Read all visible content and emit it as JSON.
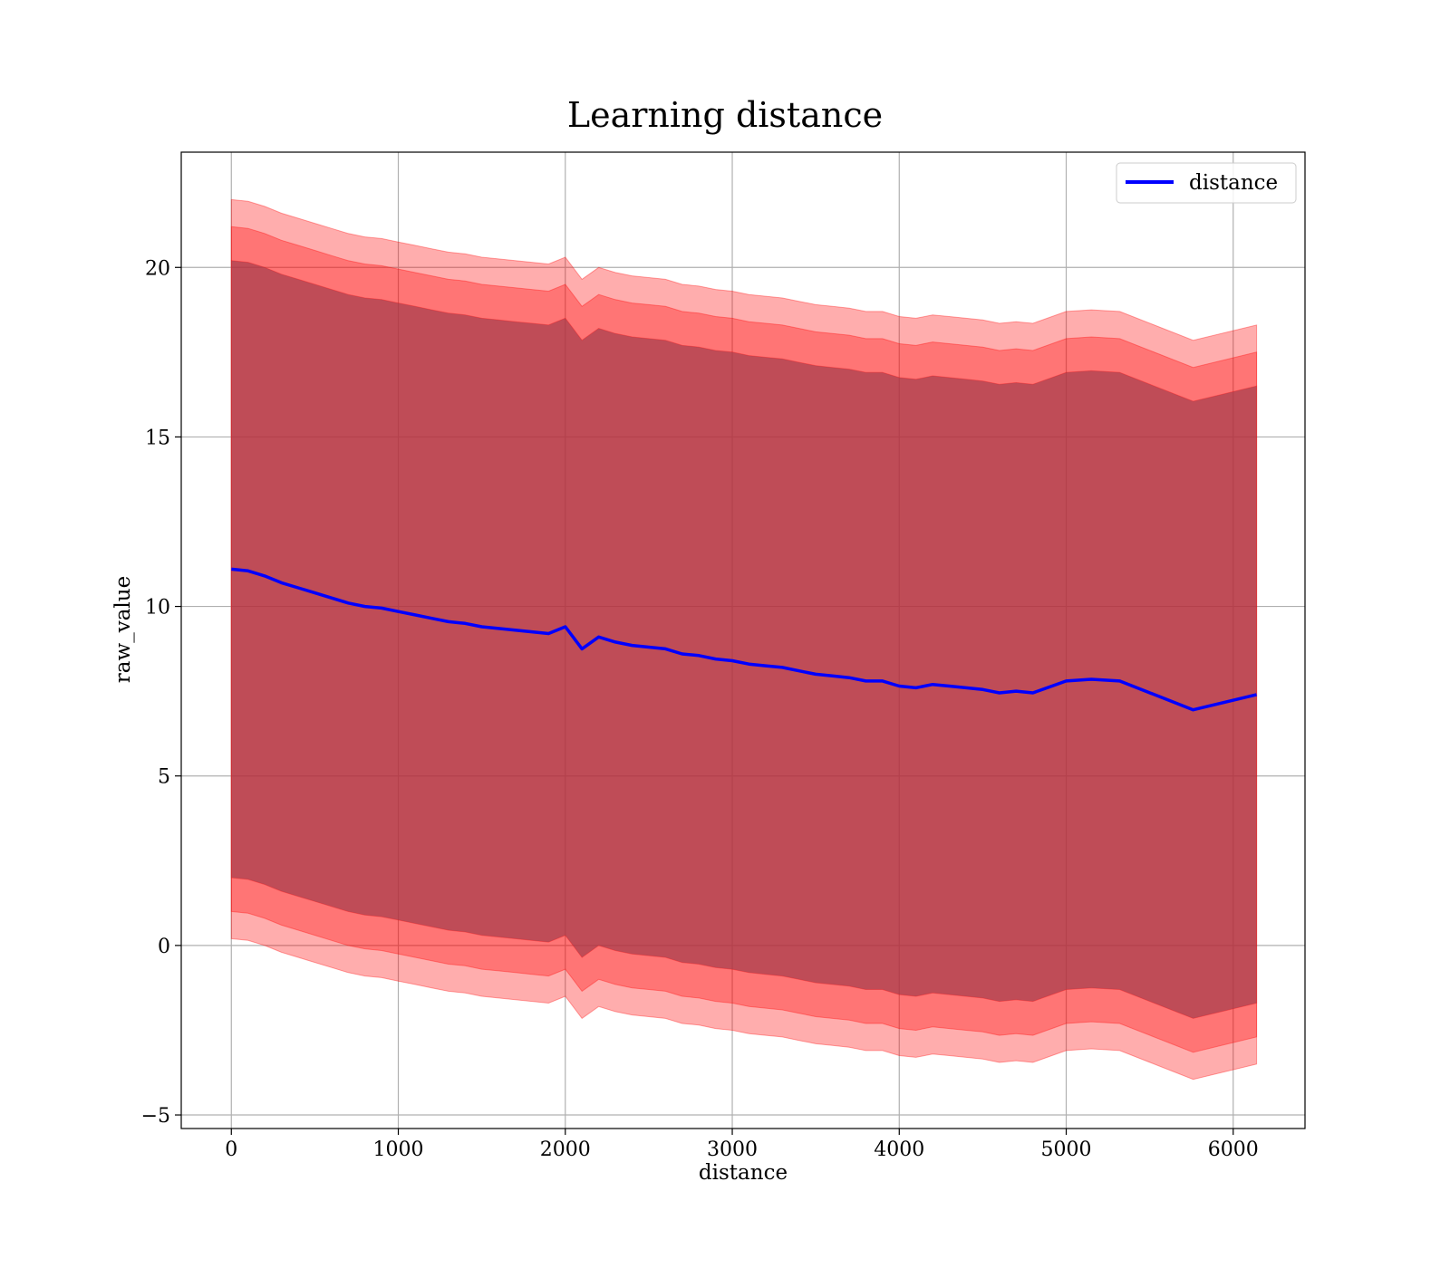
{
  "chart_data": {
    "type": "line",
    "title": "Learning distance",
    "xlabel": "distance",
    "ylabel": "raw_value",
    "xlim": [
      -300,
      6430
    ],
    "ylim": [
      -5.4,
      23.4
    ],
    "xticks": [
      0,
      1000,
      2000,
      3000,
      4000,
      5000,
      6000
    ],
    "yticks": [
      -5,
      0,
      5,
      10,
      15,
      20
    ],
    "xtick_labels": [
      "0",
      "1000",
      "2000",
      "3000",
      "4000",
      "5000",
      "6000"
    ],
    "ytick_labels": [
      "−5",
      "0",
      "5",
      "10",
      "15",
      "20"
    ],
    "grid": true,
    "legend": {
      "placement": "top-right",
      "entries": [
        "distance"
      ]
    },
    "colors": {
      "line": "#0000ff",
      "band": "#ff0000",
      "band_overlap": "#8b4a5e"
    },
    "series": [
      {
        "name": "distance",
        "x": [
          0,
          100,
          200,
          300,
          400,
          500,
          600,
          700,
          800,
          900,
          1000,
          1100,
          1200,
          1300,
          1400,
          1500,
          1600,
          1700,
          1800,
          1900,
          2000,
          2100,
          2200,
          2300,
          2400,
          2500,
          2600,
          2700,
          2800,
          2900,
          3000,
          3100,
          3200,
          3300,
          3400,
          3500,
          3600,
          3700,
          3800,
          3900,
          4000,
          4100,
          4200,
          4300,
          4400,
          4500,
          4600,
          4700,
          4800,
          5000,
          5150,
          5320,
          5760,
          6140
        ],
        "y": [
          11.1,
          11.05,
          10.9,
          10.7,
          10.55,
          10.4,
          10.25,
          10.1,
          10.0,
          9.95,
          9.85,
          9.75,
          9.65,
          9.55,
          9.5,
          9.4,
          9.35,
          9.3,
          9.25,
          9.2,
          9.4,
          8.75,
          9.1,
          8.95,
          8.85,
          8.8,
          8.75,
          8.6,
          8.55,
          8.45,
          8.4,
          8.3,
          8.25,
          8.2,
          8.1,
          8.0,
          7.95,
          7.9,
          7.8,
          7.8,
          7.65,
          7.6,
          7.7,
          7.65,
          7.6,
          7.55,
          7.45,
          7.5,
          7.45,
          7.8,
          7.85,
          7.8,
          6.95,
          7.4
        ],
        "band_1sd": {
          "lower": "y - 9.1",
          "upper": "y + 9.1"
        },
        "band_2sd": {
          "lower": "y - 10.1",
          "upper": "y + 10.1"
        },
        "band_3sd": {
          "lower": "y - 10.9",
          "upper": "y + 10.9"
        }
      }
    ]
  }
}
